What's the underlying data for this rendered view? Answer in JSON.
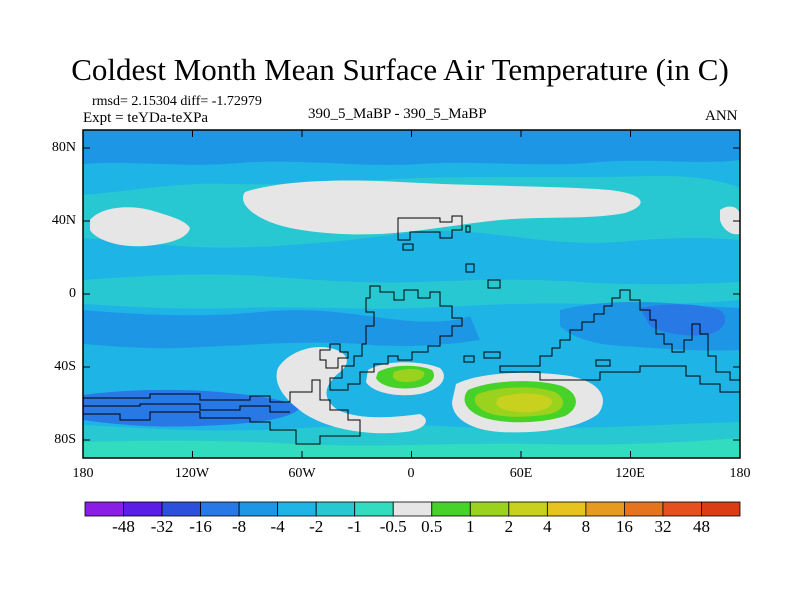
{
  "title": "Coldest Month Mean Surface Air Temperature (in C)",
  "stats": "rmsd= 2.15304  diff= -1.72979",
  "experiment": "Expt = teYDa-teXPa",
  "comparison": "390_5_MaBP - 390_5_MaBP",
  "period": "ANN",
  "lat_labels": [
    "80N",
    "40N",
    "0",
    "40S",
    "80S"
  ],
  "lon_labels": [
    "180",
    "120W",
    "60W",
    "0",
    "60E",
    "120E",
    "180"
  ],
  "colorbar": {
    "labels": [
      "-48",
      "-32",
      "-16",
      "-8",
      "-4",
      "-2",
      "-1",
      "-0.5",
      "0.5",
      "1",
      "2",
      "4",
      "8",
      "16",
      "32",
      "48"
    ],
    "colors": [
      "#8a1ee6",
      "#5a1ee6",
      "#2d50dc",
      "#2878e6",
      "#1e96e6",
      "#1eb4e6",
      "#28c8d2",
      "#32dcbe",
      "#e6e6e6",
      "#46d228",
      "#9bd21e",
      "#c8d21e",
      "#e6c31e",
      "#e69b1e",
      "#e6731e",
      "#e6501e",
      "#dc3c14"
    ]
  },
  "colors": {
    "ocean_base": "#1eb4e6",
    "mid_blue": "#1e96e6",
    "dark_blue": "#2878e6",
    "cyan": "#28c8d2",
    "teal": "#32dcbe",
    "near_zero": "#e6e6e6",
    "green": "#46d228",
    "yellow_green": "#9bd21e",
    "yellow": "#c8d21e"
  }
}
